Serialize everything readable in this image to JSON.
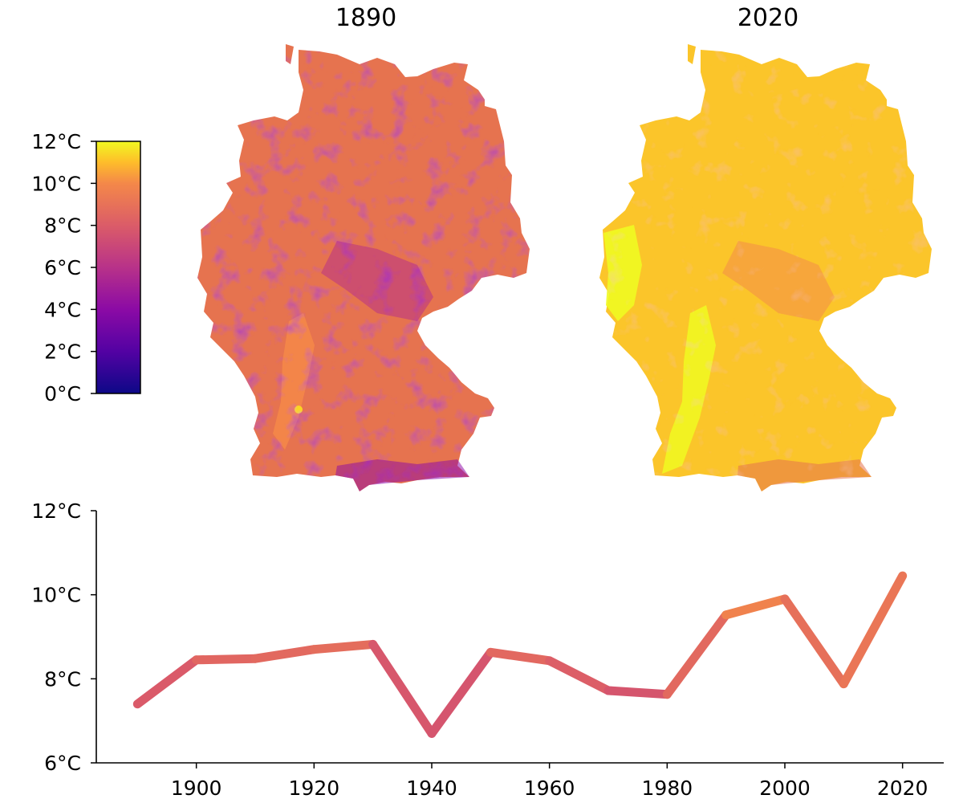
{
  "chart_data": [
    {
      "type": "heatmap",
      "title": "1890",
      "map": "Germany",
      "colormap": "plasma",
      "colorbar": {
        "range": [
          0,
          12
        ],
        "ticks": [
          "0°C",
          "2°C",
          "4°C",
          "6°C",
          "8°C",
          "10°C",
          "12°C"
        ],
        "placement": "left"
      }
    },
    {
      "type": "heatmap",
      "title": "2020",
      "map": "Germany",
      "colormap": "plasma"
    },
    {
      "type": "line",
      "xlabel": "",
      "ylabel": "",
      "x": [
        1890,
        1900,
        1910,
        1920,
        1930,
        1940,
        1950,
        1960,
        1970,
        1980,
        1990,
        2000,
        2010,
        2020
      ],
      "values": [
        7.4,
        8.45,
        8.48,
        8.7,
        8.82,
        6.7,
        8.63,
        8.43,
        7.72,
        7.63,
        9.52,
        9.9,
        7.88,
        10.45
      ],
      "xlim": [
        1883,
        2027
      ],
      "ylim": [
        6,
        12
      ],
      "xticks": [
        "1900",
        "1920",
        "1940",
        "1960",
        "1980",
        "2000",
        "2020"
      ],
      "yticks": [
        "6°C",
        "8°C",
        "10°C",
        "12°C"
      ],
      "line_colored_by_value": true,
      "grid": false
    }
  ]
}
